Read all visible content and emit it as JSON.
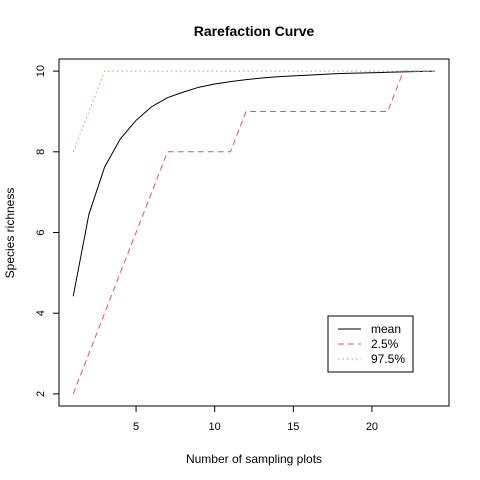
{
  "chart_data": {
    "type": "line",
    "title": "Rarefaction Curve",
    "xlabel": "Number of sampling plots",
    "ylabel": "Species richness",
    "xlim": [
      0.1,
      24.9
    ],
    "ylim": [
      1.7,
      10.3
    ],
    "xticks": [
      5,
      10,
      15,
      20
    ],
    "yticks": [
      2,
      4,
      6,
      8,
      10
    ],
    "grid": false,
    "legend_position": "bottom-right",
    "x": [
      1,
      2,
      3,
      4,
      5,
      6,
      7,
      8,
      9,
      10,
      11,
      12,
      13,
      14,
      15,
      16,
      17,
      18,
      19,
      20,
      21,
      22,
      23,
      24
    ],
    "series": [
      {
        "name": "mean",
        "color": "#000000",
        "dash": "solid",
        "values": [
          4.42,
          6.45,
          7.62,
          8.32,
          8.78,
          9.12,
          9.34,
          9.48,
          9.6,
          9.68,
          9.74,
          9.79,
          9.83,
          9.86,
          9.88,
          9.9,
          9.92,
          9.94,
          9.95,
          9.96,
          9.97,
          9.98,
          9.99,
          10.0
        ]
      },
      {
        "name": "2.5%",
        "color": "#DF536B",
        "dash": "dashed",
        "values": [
          2,
          3,
          4,
          5,
          6,
          7,
          8,
          8,
          8,
          8,
          8,
          9,
          9,
          9,
          9,
          9,
          9,
          9,
          9,
          9,
          9,
          10,
          10,
          10
        ]
      },
      {
        "name": "97.5%",
        "color": "#61D04F",
        "dash": "dotted",
        "values": [
          8,
          9,
          10,
          10,
          10,
          10,
          10,
          10,
          10,
          10,
          10,
          10,
          10,
          10,
          10,
          10,
          10,
          10,
          10,
          10,
          10,
          10,
          10,
          10
        ]
      }
    ]
  }
}
